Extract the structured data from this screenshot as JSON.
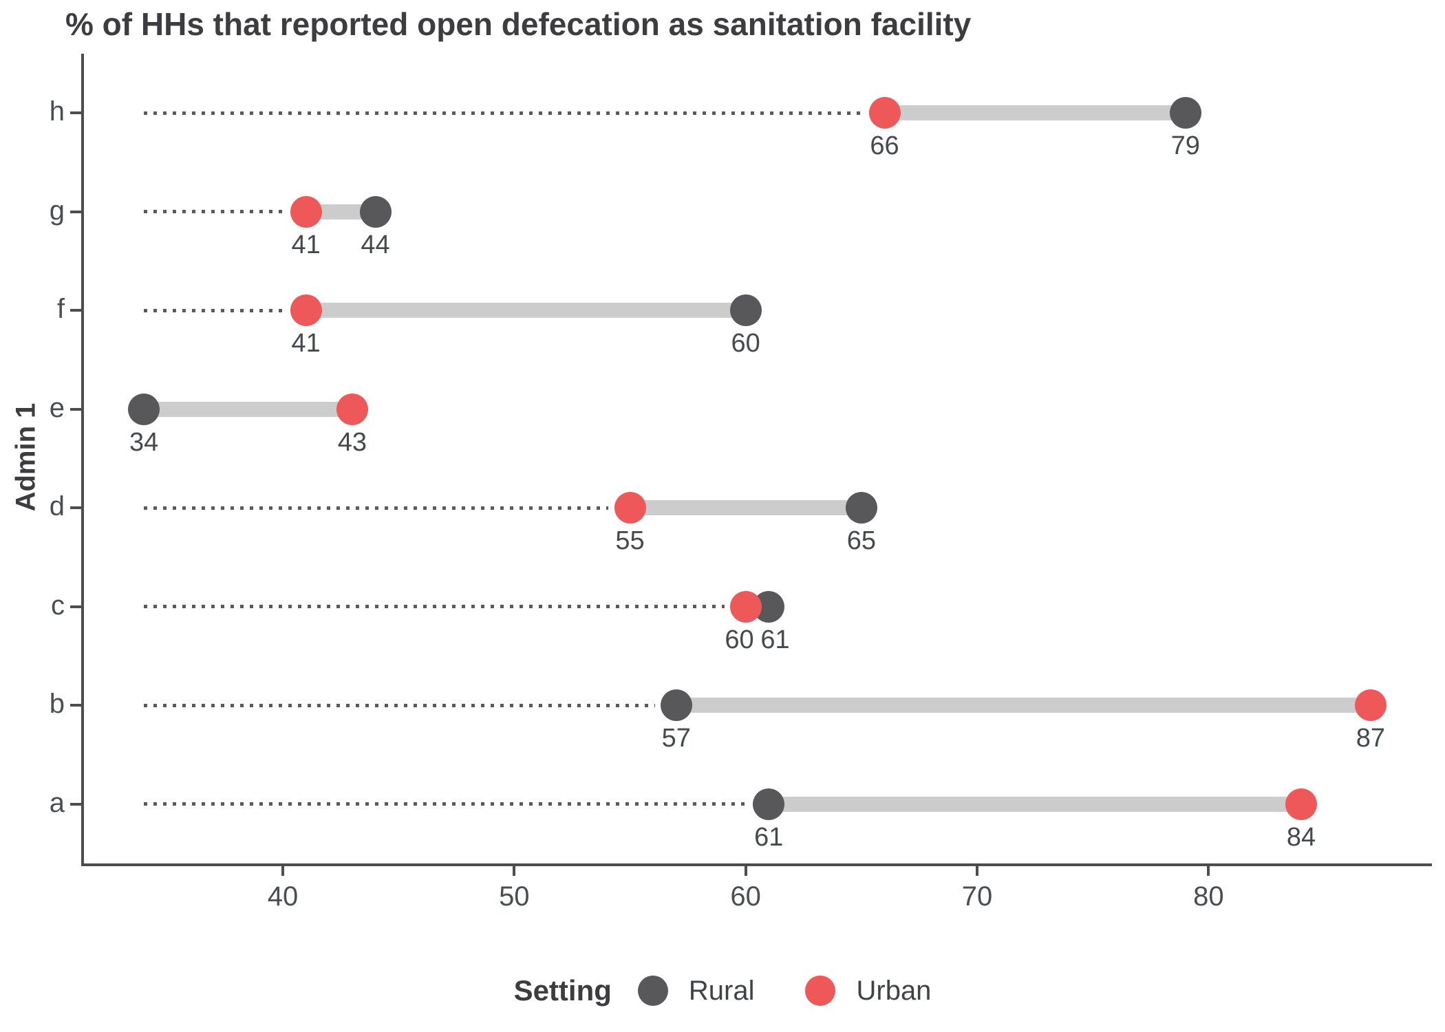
{
  "chart_data": {
    "type": "scatter",
    "variant": "dumbbell",
    "title": "% of HHs that reported open defecation as sanitation facility",
    "xlabel": "",
    "ylabel": "Admin 1",
    "categories": [
      "h",
      "g",
      "f",
      "e",
      "d",
      "c",
      "b",
      "a"
    ],
    "series": [
      {
        "name": "Rural",
        "color": "#58585a",
        "values": [
          79,
          44,
          60,
          34,
          65,
          61,
          57,
          61
        ]
      },
      {
        "name": "Urban",
        "color": "#ee5859",
        "values": [
          66,
          41,
          41,
          43,
          55,
          60,
          87,
          84
        ]
      }
    ],
    "value_labels": true,
    "xlim": [
      31.35,
      89.65
    ],
    "x_ticks": [
      40,
      50,
      60,
      70,
      80
    ],
    "grid": false,
    "legend_title": "Setting",
    "legend_position": "bottom",
    "colors": {
      "connector": "#cccccc",
      "leader_dots": "#5a5a5c",
      "axis": "#4d4d4f",
      "title_text": "#3d3d3f",
      "axis_text": "#4a4e53",
      "value_text": "#45494e"
    },
    "leader_style": "dotted-from-global-min"
  }
}
